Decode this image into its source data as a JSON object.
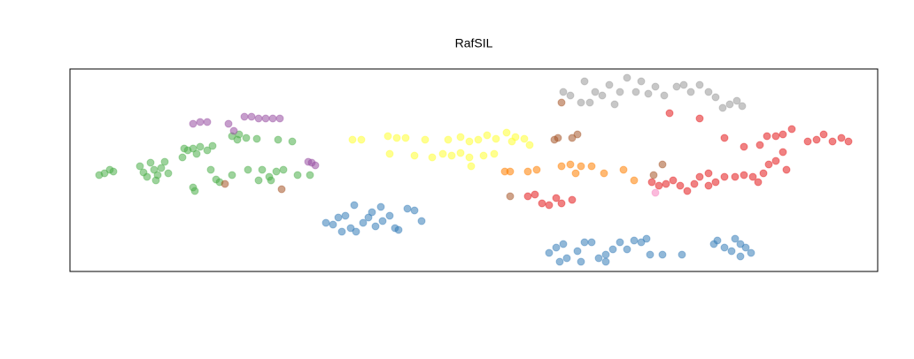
{
  "chart_data": {
    "type": "scatter",
    "title": "RafSIL",
    "xlim": [
      0,
      912
    ],
    "ylim": [
      0,
      229
    ],
    "series": [
      {
        "color": "#4daf4a",
        "x": [
          33,
          39,
          45,
          49,
          79,
          83,
          87,
          91,
          95,
          99,
          103,
          107,
          111,
          97,
          127,
          133,
          139,
          147,
          155,
          161,
          129,
          143,
          159,
          165,
          169,
          139,
          141,
          183,
          189,
          199,
          211,
          235,
          251,
          201,
          217,
          225,
          233,
          241,
          257,
          271,
          213,
          227,
          183,
          191
        ],
        "values": [
          109,
          111,
          115,
          113,
          119,
          112,
          107,
          123,
          115,
          109,
          117,
          124,
          111,
          103,
          129,
          137,
          139,
          141,
          137,
          142,
          139,
          133,
          115,
          104,
          101,
          95,
          91,
          153,
          149,
          151,
          150,
          149,
          147,
          115,
          115,
          107,
          113,
          115,
          109,
          109,
          103,
          103,
          109,
          155
        ]
      },
      {
        "color": "#984ea3",
        "x": [
          139,
          147,
          155,
          179,
          197,
          205,
          213,
          221,
          229,
          237,
          273,
          277,
          269,
          185
        ],
        "values": [
          167,
          169,
          169,
          167,
          175,
          175,
          173,
          173,
          173,
          173,
          123,
          120,
          124,
          159
        ]
      },
      {
        "color": "#ffff33",
        "x": [
          319,
          329,
          359,
          369,
          379,
          401,
          427,
          441,
          451,
          461,
          471,
          481,
          493,
          503,
          513,
          519,
          361,
          389,
          409,
          421,
          431,
          441,
          451,
          467,
          479,
          453,
          499
        ],
        "values": [
          149,
          149,
          153,
          151,
          151,
          149,
          149,
          152,
          147,
          149,
          154,
          150,
          157,
          152,
          150,
          143,
          133,
          131,
          129,
          133,
          131,
          134,
          129,
          131,
          133,
          119,
          147
        ]
      },
      {
        "color": "#377eb8",
        "x": [
          289,
          297,
          303,
          311,
          317,
          323,
          331,
          337,
          345,
          351,
          321,
          341,
          367,
          371,
          381,
          389,
          397,
          307,
          361,
          353,
          541,
          549,
          557,
          561,
          573,
          581,
          589,
          597,
          605,
          613,
          621,
          629,
          637,
          645,
          651,
          655,
          669,
          691,
          605,
          577,
          553,
          731,
          739,
          747,
          751,
          757,
          763,
          769,
          757,
          727
        ],
        "values": [
          55,
          53,
          61,
          63,
          49,
          45,
          55,
          61,
          51,
          73,
          75,
          67,
          49,
          47,
          71,
          69,
          57,
          45,
          63,
          57,
          21,
          27,
          31,
          15,
          23,
          33,
          33,
          15,
          19,
          25,
          33,
          25,
          35,
          33,
          37,
          19,
          19,
          19,
          11,
          11,
          11,
          35,
          27,
          23,
          37,
          31,
          27,
          21,
          17,
          31
        ]
      },
      {
        "color": "#999999",
        "x": [
          557,
          565,
          577,
          587,
          593,
          601,
          609,
          621,
          629,
          639,
          645,
          653,
          661,
          671,
          685,
          693,
          701,
          711,
          721,
          729,
          737,
          745,
          753,
          759,
          581,
          615
        ],
        "values": [
          203,
          199,
          191,
          191,
          203,
          199,
          211,
          203,
          219,
          203,
          215,
          201,
          209,
          199,
          209,
          211,
          203,
          211,
          203,
          197,
          185,
          189,
          193,
          187,
          215,
          189
        ]
      },
      {
        "color": "#e41a1c",
        "x": [
          517,
          525,
          533,
          541,
          549,
          555,
          567,
          677,
          711,
          739,
          761,
          779,
          787,
          797,
          805,
          815,
          833,
          843,
          851,
          861,
          871,
          879,
          657,
          665,
          673,
          681,
          689,
          697,
          705,
          721,
          729,
          739,
          751,
          761,
          771,
          777,
          783,
          789,
          797,
          805,
          809,
          721,
          711
        ],
        "values": [
          85,
          87,
          77,
          75,
          83,
          77,
          81,
          179,
          173,
          151,
          141,
          143,
          153,
          153,
          155,
          161,
          147,
          149,
          155,
          147,
          151,
          147,
          101,
          97,
          99,
          103,
          97,
          91,
          99,
          97,
          101,
          107,
          107,
          109,
          107,
          101,
          111,
          121,
          125,
          135,
          115,
          111,
          107
        ]
      },
      {
        "color": "#ff7f00",
        "x": [
          491,
          497,
          517,
          527,
          555,
          565,
          577,
          589,
          603,
          625,
          637,
          571
        ],
        "values": [
          113,
          113,
          113,
          115,
          119,
          121,
          119,
          119,
          111,
          115,
          103,
          111
        ]
      },
      {
        "color": "#a65628",
        "x": [
          547,
          551,
          567,
          573,
          555,
          669,
          659,
          497,
          175,
          239
        ],
        "values": [
          149,
          151,
          151,
          155,
          191,
          121,
          109,
          85,
          99,
          93
        ]
      },
      {
        "color": "#f781bf",
        "x": [
          661
        ],
        "values": [
          89
        ]
      }
    ]
  }
}
